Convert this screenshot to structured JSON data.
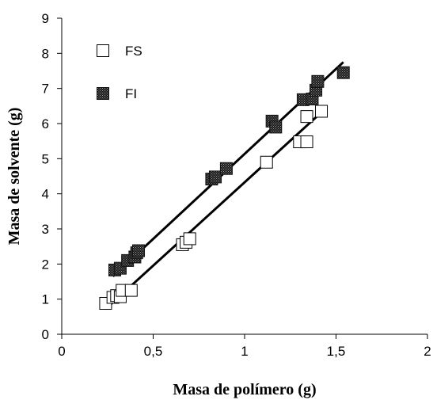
{
  "chart_data": {
    "type": "scatter",
    "title": "",
    "xlabel": "Masa de polímero (g)",
    "ylabel": "Masa de solvente (g)",
    "xlim": [
      0,
      2
    ],
    "ylim": [
      0,
      9
    ],
    "xticks": [
      0,
      0.5,
      1,
      1.5,
      2
    ],
    "xtick_labels": [
      "0",
      "0,5",
      "1",
      "1,5",
      "2"
    ],
    "yticks": [
      0,
      1,
      2,
      3,
      4,
      5,
      6,
      7,
      8,
      9
    ],
    "ytick_labels": [
      "0",
      "1",
      "2",
      "3",
      "4",
      "5",
      "6",
      "7",
      "8",
      "9"
    ],
    "grid": false,
    "legend_position": "top-left",
    "series": [
      {
        "name": "FS",
        "marker": "open-square",
        "color": "#000000",
        "points": [
          [
            0.24,
            0.88
          ],
          [
            0.28,
            1.05
          ],
          [
            0.3,
            1.1
          ],
          [
            0.32,
            1.07
          ],
          [
            0.33,
            1.25
          ],
          [
            0.38,
            1.25
          ],
          [
            0.66,
            2.55
          ],
          [
            0.68,
            2.62
          ],
          [
            0.7,
            2.72
          ],
          [
            1.12,
            4.9
          ],
          [
            1.3,
            5.48
          ],
          [
            1.34,
            5.48
          ],
          [
            1.34,
            6.2
          ],
          [
            1.42,
            6.35
          ]
        ],
        "trendline": [
          [
            0.24,
            0.72
          ],
          [
            1.42,
            6.32
          ]
        ]
      },
      {
        "name": "FI",
        "marker": "filled-square",
        "color": "#000000",
        "points": [
          [
            0.29,
            1.83
          ],
          [
            0.32,
            1.88
          ],
          [
            0.36,
            2.1
          ],
          [
            0.4,
            2.2
          ],
          [
            0.41,
            2.32
          ],
          [
            0.42,
            2.38
          ],
          [
            0.82,
            4.42
          ],
          [
            0.84,
            4.48
          ],
          [
            0.9,
            4.72
          ],
          [
            1.15,
            6.07
          ],
          [
            1.17,
            5.9
          ],
          [
            1.32,
            6.68
          ],
          [
            1.37,
            6.7
          ],
          [
            1.39,
            6.95
          ],
          [
            1.4,
            7.2
          ],
          [
            1.54,
            7.45
          ]
        ],
        "trendline": [
          [
            0.28,
            1.65
          ],
          [
            1.54,
            7.75
          ]
        ]
      }
    ]
  }
}
